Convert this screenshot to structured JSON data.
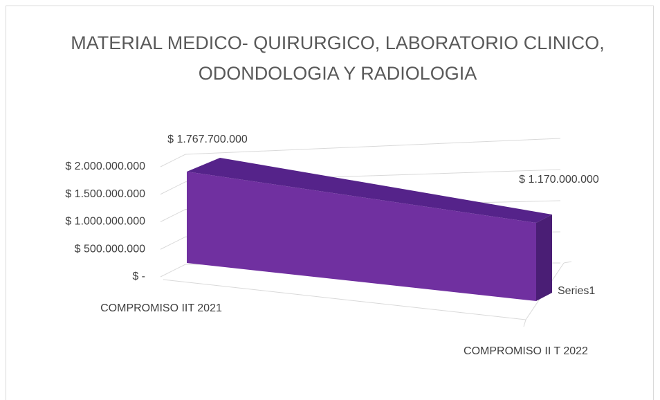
{
  "chart_data": {
    "type": "area3d",
    "title": "MATERIAL MEDICO- QUIRURGICO, LABORATORIO CLINICO, ODONDOLOGIA Y RADIOLOGIA",
    "categories": [
      "COMPROMISO IIT 2021",
      "COMPROMISO II T 2022"
    ],
    "series": [
      {
        "name": "Series1",
        "color": "#7030a0",
        "values": [
          1767700000,
          1170000000
        ],
        "value_labels": [
          "$ 1.767.700.000",
          "$ 1.170.000.000"
        ]
      }
    ],
    "ylim": [
      0,
      2000000000
    ],
    "yticks": [
      {
        "value": 0,
        "label": "$ -"
      },
      {
        "value": 500000000,
        "label": "$ 500.000.000"
      },
      {
        "value": 1000000000,
        "label": "$ 1.000.000.000"
      },
      {
        "value": 1500000000,
        "label": "$ 1.500.000.000"
      },
      {
        "value": 2000000000,
        "label": "$ 2.000.000.000"
      }
    ],
    "grid": true
  }
}
